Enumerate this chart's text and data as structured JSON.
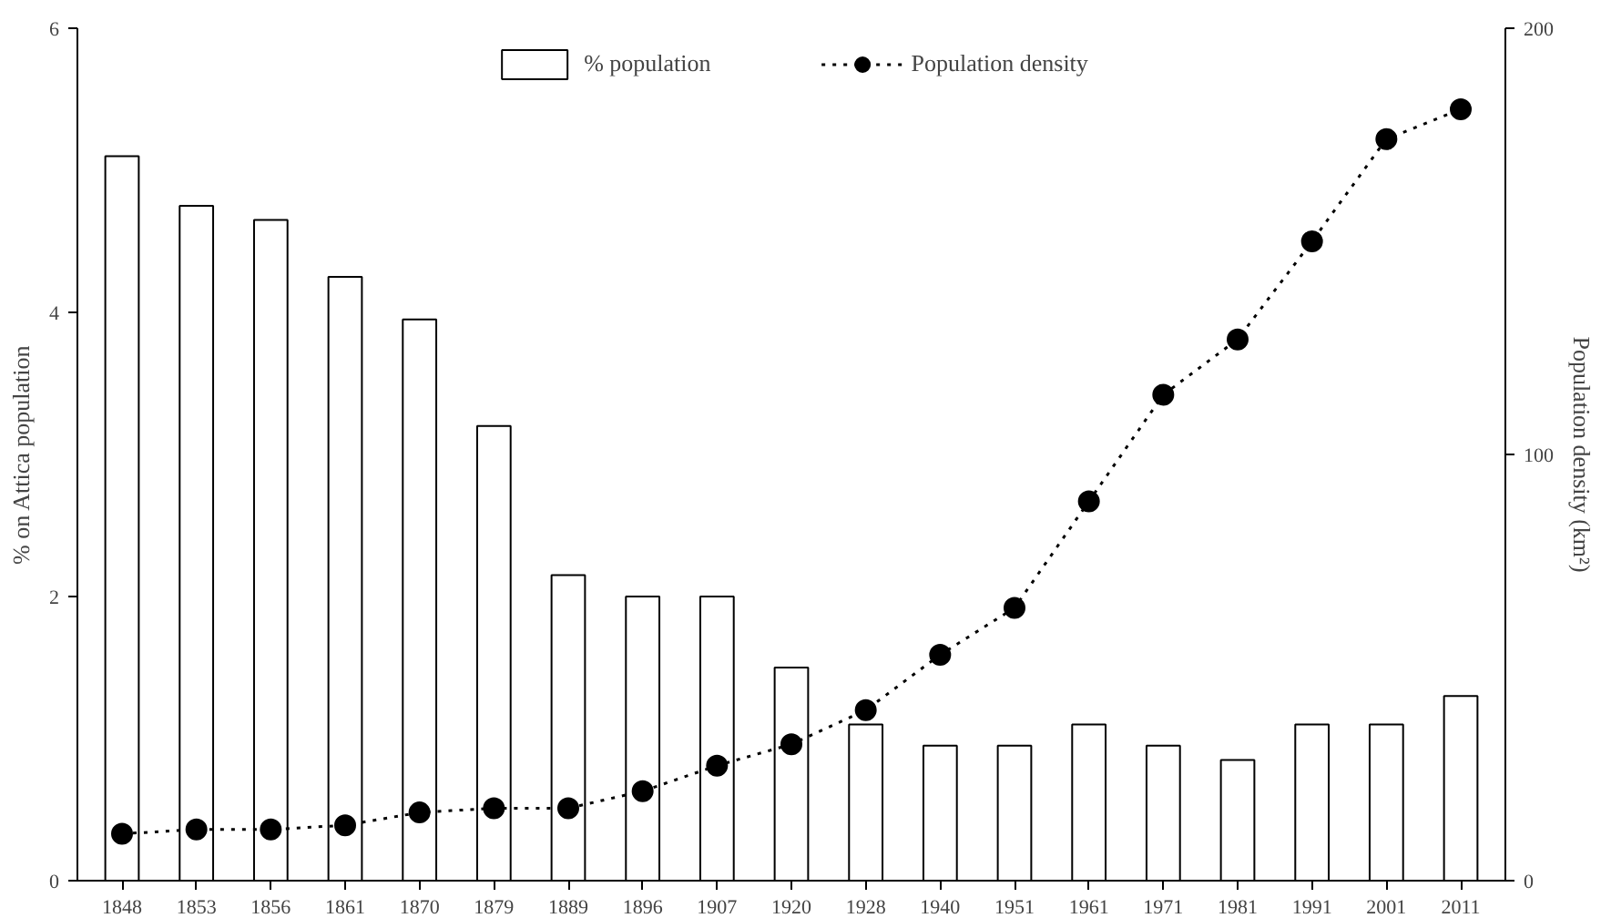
{
  "chart_data": {
    "type": "bar",
    "xlabel": null,
    "ylabel": "% on Attica population",
    "y2label": "Population density (km²)",
    "categories": [
      "1848",
      "1853",
      "1856",
      "1861",
      "1870",
      "1879",
      "1889",
      "1896",
      "1907",
      "1920",
      "1928",
      "1940",
      "1951",
      "1961",
      "1971",
      "1981",
      "1991",
      "2001",
      "2011"
    ],
    "series": [
      {
        "name": "% population",
        "color": "#ffffff",
        "values": [
          5.1,
          4.75,
          4.65,
          4.25,
          3.95,
          3.2,
          2.15,
          2.0,
          2.0,
          1.5,
          1.1,
          0.95,
          0.95,
          1.1,
          0.95,
          0.85,
          1.1,
          1.1,
          1.3
        ]
      },
      {
        "name": "Population density",
        "type": "line",
        "axis": "y2",
        "color": "#000000",
        "marker": "circle",
        "line_style": "dotted",
        "values": [
          11,
          12,
          12,
          13,
          16,
          17,
          17,
          21,
          27,
          32,
          40,
          53,
          64,
          89,
          114,
          127,
          150,
          174,
          181
        ]
      }
    ],
    "ylim": [
      0,
      6
    ],
    "yticks": [
      0,
      2,
      4,
      6
    ],
    "y2lim": [
      0,
      200
    ],
    "y2ticks": [
      0,
      100,
      200
    ],
    "grid": false,
    "legend": "top"
  }
}
